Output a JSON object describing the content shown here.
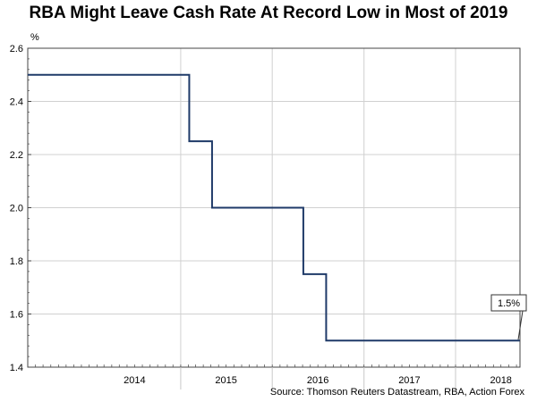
{
  "chart_data": {
    "type": "line",
    "step": true,
    "title": "RBA Might Leave Cash Rate At Record Low in Most of 2019",
    "ylabel": "%",
    "xlabel": "",
    "ylim": [
      1.4,
      2.6
    ],
    "yticks": [
      "1.4",
      "1.6",
      "1.8",
      "2.0",
      "2.2",
      "2.4",
      "2.6"
    ],
    "xlim": [
      "2013-05-01",
      "2018-09-15"
    ],
    "xticks": [
      {
        "label": "2014",
        "date": "2014-07-01"
      },
      {
        "label": "2015",
        "date": "2015-07-01"
      },
      {
        "label": "2016",
        "date": "2016-07-01"
      },
      {
        "label": "2017",
        "date": "2017-07-01"
      },
      {
        "label": "2018",
        "date": "2018-07-01"
      }
    ],
    "year_gridlines": [
      "2015-01-01",
      "2016-01-01",
      "2017-01-01",
      "2018-01-01"
    ],
    "grid": true,
    "line_color": "#1f3a68",
    "series": [
      {
        "x": [
          "2013-05-01",
          "2015-02-04",
          "2015-05-06",
          "2016-05-04",
          "2016-08-03",
          "2018-09-15"
        ],
        "values": [
          2.5,
          2.25,
          2.0,
          1.75,
          1.5,
          1.5
        ]
      }
    ],
    "annotations": [
      {
        "text": "1.5%",
        "x": "2018-09-15",
        "y": 1.5
      }
    ],
    "source": "Source: Thomson Reuters Datastream, RBA, Action Forex"
  }
}
